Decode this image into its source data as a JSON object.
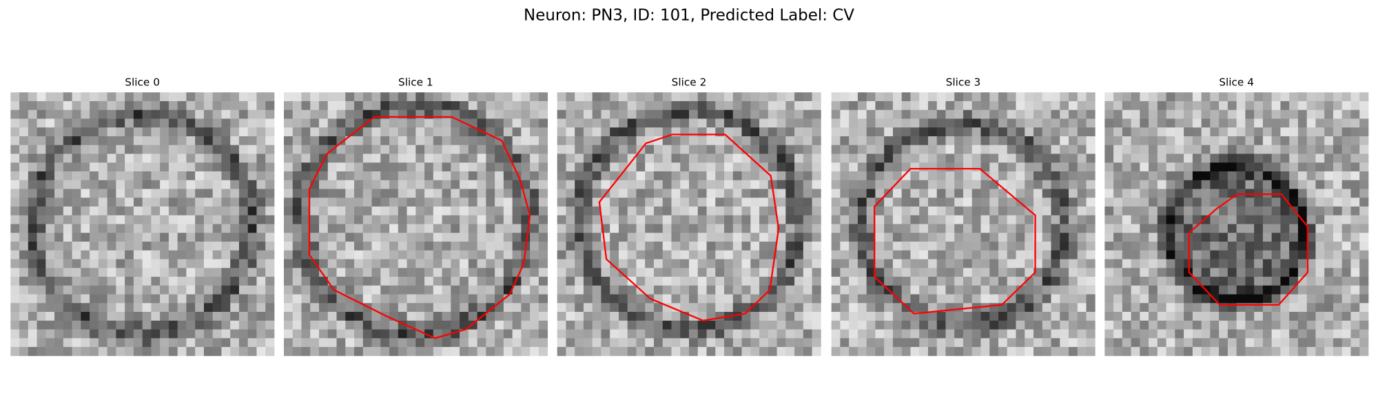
{
  "title": "Neuron: PN3, ID: 101, Predicted Label: CV",
  "panels": [
    {
      "title": "Slice 0"
    },
    {
      "title": "Slice 1"
    },
    {
      "title": "Slice 2"
    },
    {
      "title": "Slice 3"
    },
    {
      "title": "Slice 4"
    }
  ]
}
